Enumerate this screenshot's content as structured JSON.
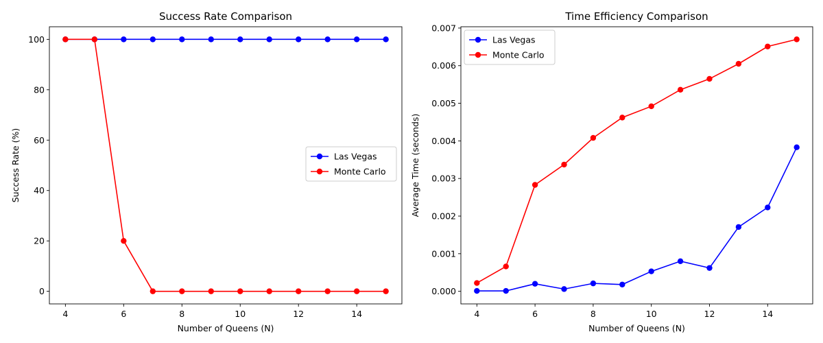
{
  "chart_data": [
    {
      "type": "line",
      "title": "Success Rate Comparison",
      "xlabel": "Number of Queens (N)",
      "ylabel": "Success Rate (%)",
      "x": [
        4,
        5,
        6,
        7,
        8,
        9,
        10,
        11,
        12,
        13,
        14,
        15
      ],
      "xlim": [
        3.45,
        15.55
      ],
      "ylim": [
        -5,
        105
      ],
      "xticks": [
        4,
        6,
        8,
        10,
        12,
        14
      ],
      "yticks": [
        0,
        20,
        40,
        60,
        80,
        100
      ],
      "ytick_labels": [
        "0",
        "20",
        "40",
        "60",
        "80",
        "100"
      ],
      "grid": false,
      "legend_position": "center-right",
      "series": [
        {
          "name": "Las Vegas",
          "color": "#0000ff",
          "values": [
            100,
            100,
            100,
            100,
            100,
            100,
            100,
            100,
            100,
            100,
            100,
            100
          ]
        },
        {
          "name": "Monte Carlo",
          "color": "#ff0000",
          "values": [
            100,
            100,
            20,
            0,
            0,
            0,
            0,
            0,
            0,
            0,
            0,
            0
          ]
        }
      ]
    },
    {
      "type": "line",
      "title": "Time Efficiency Comparison",
      "xlabel": "Number of Queens (N)",
      "ylabel": "Average Time (seconds)",
      "x": [
        4,
        5,
        6,
        7,
        8,
        9,
        10,
        11,
        12,
        13,
        14,
        15
      ],
      "xlim": [
        3.45,
        15.55
      ],
      "ylim": [
        -0.000335,
        0.007035
      ],
      "xticks": [
        4,
        6,
        8,
        10,
        12,
        14
      ],
      "yticks": [
        0,
        0.001,
        0.002,
        0.003,
        0.004,
        0.005,
        0.006,
        0.007
      ],
      "ytick_labels": [
        "0.000",
        "0.001",
        "0.002",
        "0.003",
        "0.004",
        "0.005",
        "0.006",
        "0.007"
      ],
      "grid": false,
      "legend_position": "top-left",
      "series": [
        {
          "name": "Las Vegas",
          "color": "#0000ff",
          "values": [
            1e-05,
            1e-05,
            0.0002,
            6e-05,
            0.00021,
            0.00018,
            0.00053,
            0.0008,
            0.00062,
            0.00171,
            0.00223,
            0.00383
          ]
        },
        {
          "name": "Monte Carlo",
          "color": "#ff0000",
          "values": [
            0.00022,
            0.00066,
            0.00283,
            0.00337,
            0.00408,
            0.00462,
            0.00492,
            0.00536,
            0.00565,
            0.00605,
            0.00651,
            0.0067
          ]
        }
      ]
    }
  ]
}
